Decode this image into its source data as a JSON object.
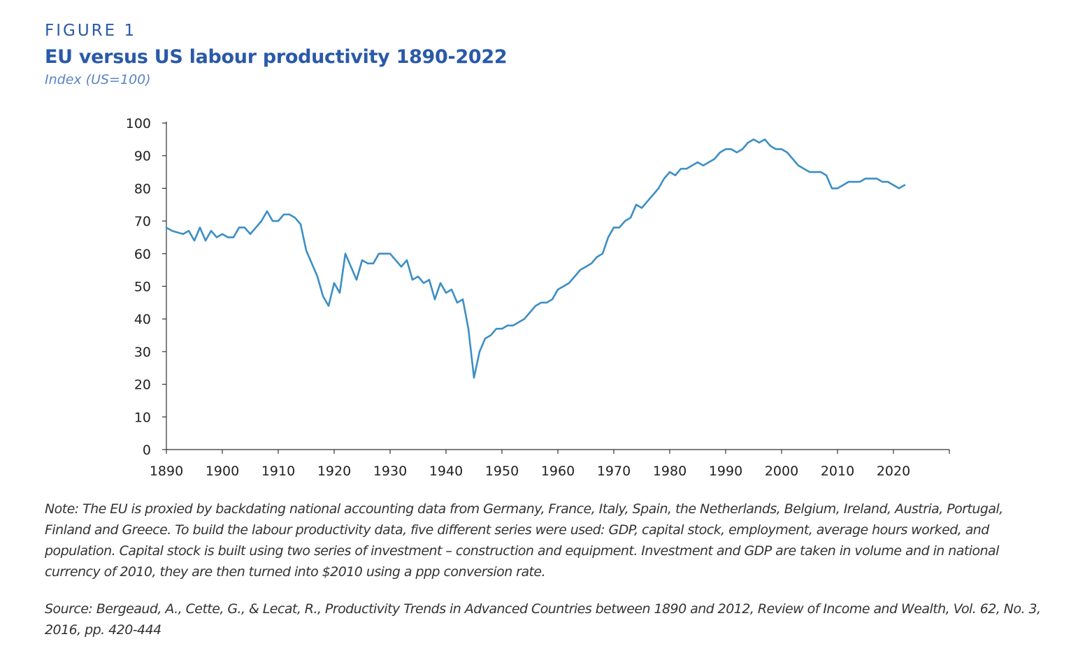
{
  "figure_label": "FIGURE 1",
  "title": "EU versus US labour productivity 1890-2022",
  "subtitle": "Index (US=100)",
  "note": "Note: The EU is proxied by backdating national accounting data from Germany, France, Italy, Spain, the Netherlands, Belgium, Ireland, Austria, Portugal, Finland and Greece. To build the labour productivity data, five different series were used: GDP, capital stock, employment, average hours worked, and population. Capital stock is built using two series of investment – construction and equipment. Investment and GDP are taken in volume and in national currency of 2010, they are then turned into $2010 using a ppp conversion rate.",
  "source": "Source: Bergeaud, A., Cette, G., & Lecat, R., Productivity Trends in Advanced Countries between 1890 and 2012, Review of Income and Wealth, Vol. 62, No. 3, 2016, pp. 420-444",
  "colors": {
    "series": "#3d8fc4",
    "title": "#2a5aa8",
    "axis": "#333333"
  },
  "chart_data": {
    "type": "line",
    "title": "EU versus US labour productivity 1890-2022",
    "subtitle": "Index (US=100)",
    "xlabel": "",
    "ylabel": "",
    "xlim": [
      1890,
      2030
    ],
    "ylim": [
      0,
      100
    ],
    "x_ticks": [
      1890,
      1900,
      1910,
      1920,
      1930,
      1940,
      1950,
      1960,
      1970,
      1980,
      1990,
      2000,
      2010,
      2020
    ],
    "y_ticks": [
      0,
      10,
      20,
      30,
      40,
      50,
      60,
      70,
      80,
      90,
      100
    ],
    "grid": false,
    "legend": "none",
    "series": [
      {
        "x": [
          1890,
          1891,
          1892,
          1893,
          1894,
          1895,
          1896,
          1897,
          1898,
          1899,
          1900,
          1901,
          1902,
          1903,
          1904,
          1905,
          1906,
          1907,
          1908,
          1909,
          1910,
          1911,
          1912,
          1913,
          1914,
          1915,
          1916,
          1917,
          1918,
          1919,
          1920,
          1921,
          1922,
          1923,
          1924,
          1925,
          1926,
          1927,
          1928,
          1929,
          1930,
          1931,
          1932,
          1933,
          1934,
          1935,
          1936,
          1937,
          1938,
          1939,
          1940,
          1941,
          1942,
          1943,
          1944,
          1945,
          1946,
          1947,
          1948,
          1949,
          1950,
          1951,
          1952,
          1953,
          1954,
          1955,
          1956,
          1957,
          1958,
          1959,
          1960,
          1961,
          1962,
          1963,
          1964,
          1965,
          1966,
          1967,
          1968,
          1969,
          1970,
          1971,
          1972,
          1973,
          1974,
          1975,
          1976,
          1977,
          1978,
          1979,
          1980,
          1981,
          1982,
          1983,
          1984,
          1985,
          1986,
          1987,
          1988,
          1989,
          1990,
          1991,
          1992,
          1993,
          1994,
          1995,
          1996,
          1997,
          1998,
          1999,
          2000,
          2001,
          2002,
          2003,
          2004,
          2005,
          2006,
          2007,
          2008,
          2009,
          2010,
          2011,
          2012,
          2013,
          2014,
          2015,
          2016,
          2017,
          2018,
          2019,
          2020,
          2021,
          2022
        ],
        "y": [
          68,
          67,
          66.5,
          66,
          67,
          64,
          68,
          64,
          67,
          65,
          66,
          65,
          65,
          68,
          68,
          66,
          68,
          70,
          73,
          70,
          70,
          72,
          72,
          71,
          69,
          61,
          57,
          53,
          47,
          44,
          51,
          48,
          60,
          56,
          52,
          58,
          57,
          57,
          60,
          60,
          60,
          58,
          56,
          58,
          52,
          53,
          51,
          52,
          46,
          51,
          48,
          49,
          45,
          46,
          37,
          22,
          30,
          34,
          35,
          37,
          37,
          38,
          38,
          39,
          40,
          42,
          44,
          45,
          45,
          46,
          49,
          50,
          51,
          53,
          55,
          56,
          57,
          59,
          60,
          65,
          68,
          68,
          70,
          71,
          75,
          74,
          76,
          78,
          80,
          83,
          85,
          84,
          86,
          86,
          87,
          88,
          87,
          88,
          89,
          91,
          92,
          92,
          91,
          92,
          94,
          95,
          94,
          95,
          93,
          92,
          92,
          91,
          89,
          87,
          86,
          85,
          85,
          85,
          84,
          80,
          80,
          81,
          82,
          82,
          82,
          83,
          83,
          83,
          82,
          82,
          81,
          80,
          81
        ]
      }
    ]
  }
}
